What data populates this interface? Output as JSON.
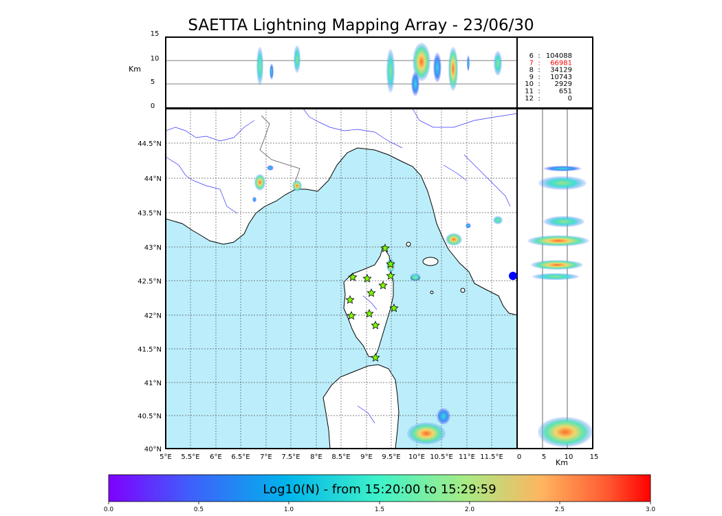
{
  "title": "SAETTA Lightning Mapping Array - 23/06/30",
  "alt_panel": {
    "ylabel": "Km",
    "yticks": [
      "0",
      "5",
      "10",
      "15"
    ]
  },
  "side_panel": {
    "xlabel": "Km",
    "xticks": [
      "0",
      "5",
      "10",
      "15"
    ]
  },
  "counts": [
    {
      "level": "6",
      "sep": ":",
      "value": "104088",
      "color": "#000000"
    },
    {
      "level": "7",
      "sep": ":",
      "value": "66981",
      "color": "#ff0000"
    },
    {
      "level": "8",
      "sep": ":",
      "value": "34129",
      "color": "#000000"
    },
    {
      "level": "9",
      "sep": ":",
      "value": "10743",
      "color": "#000000"
    },
    {
      "level": "10",
      "sep": ":",
      "value": "2929",
      "color": "#000000"
    },
    {
      "level": "11",
      "sep": ":",
      "value": "651",
      "color": "#000000"
    },
    {
      "level": "12",
      "sep": ":",
      "value": "0",
      "color": "#000000"
    }
  ],
  "map": {
    "lon_ticks": [
      "5°E",
      "5.5°E",
      "6°E",
      "6.5°E",
      "7°E",
      "7.5°E",
      "8°E",
      "8.5°E",
      "9°E",
      "9.5°E",
      "10°E",
      "10.5°E",
      "11°E",
      "11.5°E"
    ],
    "lat_ticks": [
      "40°N",
      "40.5°N",
      "41°N",
      "41.5°N",
      "42°N",
      "42.5°N",
      "43°N",
      "43.5°N",
      "44°N",
      "44.5°N"
    ],
    "sea_color": "#bbeefa",
    "land_color": "#ffffff",
    "coast_color": "#000000",
    "river_color": "#3333ff"
  },
  "colorbar": {
    "label": "Log10(N) - from 15:20:00 to 15:29:59",
    "ticks": [
      "0.0",
      "0.5",
      "1.0",
      "1.5",
      "2.0",
      "2.5",
      "3.0"
    ],
    "colors": [
      "#7f00ff",
      "#3f5ffb",
      "#00b5eb",
      "#3ff3c9",
      "#a8eb84",
      "#ffb460",
      "#ff5a30",
      "#ff0000"
    ]
  }
}
